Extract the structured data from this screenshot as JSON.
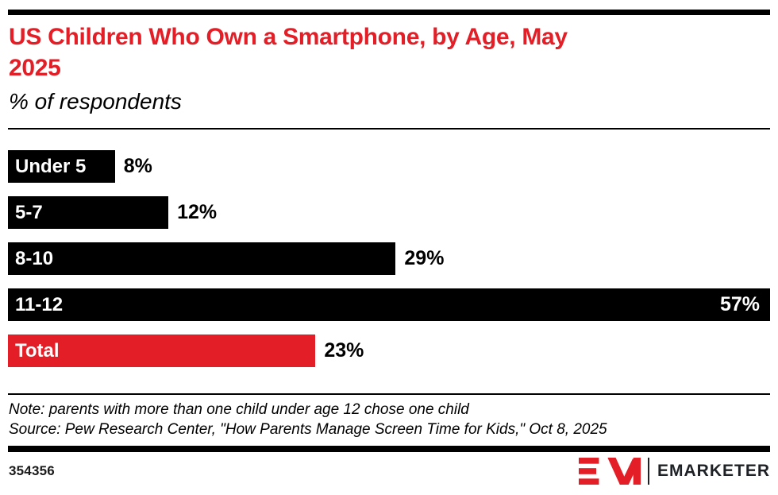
{
  "header": {
    "title": "US Children Who Own a Smartphone, by Age, May 2025",
    "subtitle": "% of respondents"
  },
  "chart_data": {
    "type": "bar",
    "orientation": "horizontal",
    "title": "US Children Who Own a Smartphone, by Age, May 2025",
    "subtitle": "% of respondents",
    "categories": [
      "Under 5",
      "5-7",
      "8-10",
      "11-12",
      "Total"
    ],
    "values": [
      8,
      12,
      29,
      57,
      23
    ],
    "value_labels": [
      "8%",
      "12%",
      "29%",
      "57%",
      "23%"
    ],
    "value_label_inside": [
      false,
      false,
      false,
      true,
      false
    ],
    "bar_colors": [
      "#000000",
      "#000000",
      "#000000",
      "#000000",
      "#e41e26"
    ],
    "xlim": [
      0,
      57
    ],
    "xlabel": "",
    "ylabel": "",
    "grid": false,
    "legend": "none"
  },
  "notes": {
    "note": "Note: parents with more than one child under age 12 chose one child",
    "source": "Source: Pew Research Center, \"How Parents Manage Screen Time for Kids,\" Oct 8, 2025"
  },
  "footer": {
    "chart_id": "354356",
    "brand_name": "EMARKETER"
  },
  "colors": {
    "accent_red": "#e41e26",
    "bar_black": "#000000",
    "rule_black": "#000000",
    "logo_red": "#e41e26",
    "logo_text": "#1e2125"
  }
}
